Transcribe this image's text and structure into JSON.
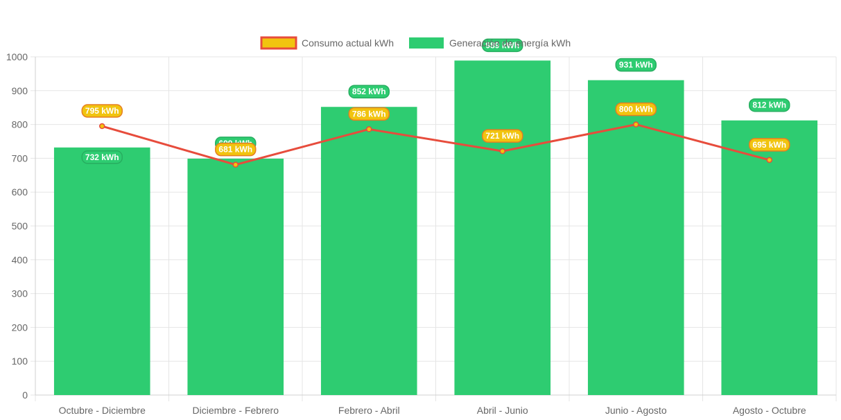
{
  "chart_data": {
    "type": "bar",
    "categories": [
      "Octubre - Diciembre",
      "Diciembre - Febrero",
      "Febrero - Abril",
      "Abril - Junio",
      "Junio - Agosto",
      "Agosto - Octubre"
    ],
    "series": [
      {
        "name": "Consumo actual kWh",
        "type": "line",
        "values": [
          795,
          681,
          786,
          721,
          800,
          695
        ],
        "labels": [
          "795 kWh",
          "681 kWh",
          "786 kWh",
          "721 kWh",
          "800 kWh",
          "695 kWh"
        ],
        "color": "#e74c3c",
        "fill": "#f1c40f"
      },
      {
        "name": "Generación de energía kWh",
        "type": "bar",
        "values": [
          732,
          699,
          852,
          989,
          931,
          812
        ],
        "labels": [
          "732 kWh",
          "699 kWh",
          "852 kWh",
          "989 kWh",
          "931 kWh",
          "812 kWh"
        ],
        "color": "#2ecc71"
      }
    ],
    "yticks": [
      "0",
      "100",
      "200",
      "300",
      "400",
      "500",
      "600",
      "700",
      "800",
      "900",
      "1000"
    ],
    "ylim": [
      0,
      1000
    ],
    "grid": true,
    "legend": "top"
  }
}
